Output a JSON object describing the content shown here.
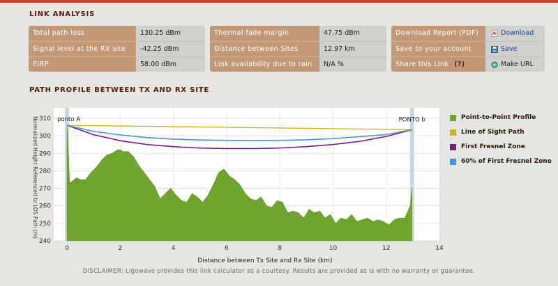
{
  "sections": {
    "link_analysis_title": "LINK ANALYSIS",
    "path_profile_title": "PATH PROFILE BETWEEN TX AND RX SITE"
  },
  "panel1": [
    {
      "label": "Total path loss",
      "value": "130.25 dBm"
    },
    {
      "label": "Signal level at the RX site",
      "value": "-42.25 dBm"
    },
    {
      "label": "EIRP",
      "value": "58.00 dBm"
    }
  ],
  "panel2": [
    {
      "label": "Thermal fade margin",
      "value": "47.75 dBm"
    },
    {
      "label": "Distance between Sites",
      "value": "12.97 km"
    },
    {
      "label": "Link availability due to rain",
      "value": "N/A %"
    }
  ],
  "panel3": {
    "download_label": "Download Report (PDF)",
    "download_link": "Download",
    "save_label": "Save to your account",
    "save_link": "Save",
    "share_label": "Share this Link",
    "share_help": "(?)",
    "share_link": "Make URL"
  },
  "icons": {
    "download": "pdf-icon",
    "save": "save-icon",
    "share": "url-icon"
  },
  "colors": {
    "terrain": "#6fa52f",
    "los": "#d9b018",
    "fresnel": "#7a1a7e",
    "fresnel60": "#4a90e2",
    "label_bg": "#c29877"
  },
  "chart_data": {
    "type": "area",
    "ylabel": "Normalized Height Referenced to LOS Path (m)",
    "xlabel": "Distance between Tx Site and Rx Site (km)",
    "xlim": [
      -0.5,
      14
    ],
    "ylim": [
      240,
      310
    ],
    "xticks": [
      0,
      2,
      4,
      6,
      8,
      10,
      12,
      14
    ],
    "yticks": [
      240,
      250,
      260,
      270,
      280,
      290,
      300,
      310
    ],
    "grid": true,
    "legend_position": "right",
    "annotations": {
      "start": "ponto A",
      "end": "PONTO b"
    },
    "series": [
      {
        "name": "Point-to-Point Profile",
        "x": [
          0,
          0.1,
          0.2,
          0.35,
          0.5,
          0.7,
          0.9,
          1.1,
          1.3,
          1.5,
          1.7,
          1.9,
          2.0,
          2.1,
          2.3,
          2.5,
          2.7,
          2.9,
          3.1,
          3.3,
          3.5,
          3.7,
          3.9,
          4.1,
          4.3,
          4.5,
          4.7,
          4.9,
          5.1,
          5.3,
          5.5,
          5.7,
          5.9,
          6.1,
          6.3,
          6.5,
          6.7,
          6.9,
          7.1,
          7.3,
          7.5,
          7.7,
          7.9,
          8.1,
          8.3,
          8.5,
          8.7,
          8.9,
          9.1,
          9.3,
          9.5,
          9.7,
          9.9,
          10.1,
          10.3,
          10.5,
          10.7,
          10.9,
          11.1,
          11.3,
          11.5,
          11.7,
          11.9,
          12.1,
          12.3,
          12.5,
          12.7,
          12.9,
          12.97
        ],
        "y": [
          306,
          273,
          274,
          276,
          275,
          275,
          279,
          282,
          286,
          289,
          290,
          292,
          292,
          291,
          291,
          288,
          283,
          279,
          275,
          271,
          264,
          267,
          270,
          266,
          263,
          262,
          267,
          265,
          262,
          266,
          272,
          279,
          281,
          277,
          275,
          272,
          267,
          264,
          263,
          265,
          260,
          259,
          263,
          262,
          256,
          257,
          256,
          253,
          258,
          256,
          257,
          253,
          255,
          250,
          253,
          252,
          255,
          251,
          252,
          253,
          251,
          252,
          251,
          249,
          252,
          253,
          253,
          260,
          270
        ]
      },
      {
        "name": "Line of Sight Path",
        "x": [
          0,
          12.97
        ],
        "y": [
          306,
          303.5
        ]
      },
      {
        "name": "First Fresnel Zone",
        "x": [
          0,
          1,
          2,
          3,
          4,
          5,
          6,
          7,
          8,
          9,
          10,
          11,
          12,
          12.97
        ],
        "y": [
          306,
          300.6,
          297.2,
          295.0,
          293.8,
          293.0,
          292.7,
          292.7,
          293.0,
          293.8,
          295.0,
          296.8,
          299.6,
          303.5
        ]
      },
      {
        "name": "60% of First Fresnel Zone",
        "x": [
          0,
          1,
          2,
          3,
          4,
          5,
          6,
          7,
          8,
          9,
          10,
          11,
          12,
          12.97
        ],
        "y": [
          306,
          302.5,
          300.5,
          299.0,
          298.1,
          297.6,
          297.4,
          297.3,
          297.4,
          297.7,
          298.4,
          299.5,
          300.7,
          303.5
        ]
      }
    ]
  }
}
